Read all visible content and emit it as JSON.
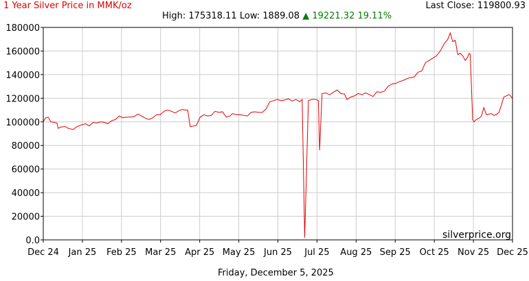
{
  "header": {
    "title": "1 Year Silver Price in MMK/oz",
    "last_close_label": "Last Close:",
    "last_close_value": "119800.93",
    "high_label": "High:",
    "high_value": "175318.11",
    "low_label": "Low:",
    "low_value": "1889.08",
    "change_arrow": "▲",
    "change_value": "19221.32",
    "change_pct": "19.11%"
  },
  "footer": {
    "date": "Friday, December 5, 2025",
    "watermark": "silverprice.org"
  },
  "colors": {
    "title": "#e00000",
    "line": "#e00000",
    "change": "#008000",
    "grid": "#cccccc",
    "axis": "#000000"
  },
  "chart_data": {
    "type": "line",
    "title": "1 Year Silver Price in MMK/oz",
    "xlabel": "",
    "ylabel": "",
    "ylim": [
      0,
      180000
    ],
    "yticks": [
      0,
      20000,
      40000,
      60000,
      80000,
      100000,
      120000,
      140000,
      160000,
      180000
    ],
    "ytick_labels": [
      "0.0",
      "20000",
      "40000",
      "60000",
      "80000",
      "100000",
      "120000",
      "140000",
      "160000",
      "180000"
    ],
    "xtick_labels": [
      "Dec 24",
      "Jan 25",
      "Feb 25",
      "Mar 25",
      "Apr 25",
      "May 25",
      "Jun 25",
      "Jul 25",
      "Aug 25",
      "Sep 25",
      "Oct 25",
      "Nov 25",
      "Dec 25"
    ],
    "grid": true,
    "series": [
      {
        "values": [
          [
            0,
            100000
          ],
          [
            2,
            103500
          ],
          [
            4,
            104000
          ],
          [
            6,
            100000
          ],
          [
            9,
            99500
          ],
          [
            11,
            99000
          ],
          [
            12,
            94500
          ],
          [
            14,
            95500
          ],
          [
            16,
            96000
          ],
          [
            18,
            96000
          ],
          [
            20,
            94500
          ],
          [
            24,
            93500
          ],
          [
            27,
            96000
          ],
          [
            31,
            97500
          ],
          [
            34,
            98500
          ],
          [
            37,
            96500
          ],
          [
            40,
            99500
          ],
          [
            43,
            99000
          ],
          [
            46,
            100000
          ],
          [
            49,
            99500
          ],
          [
            52,
            98500
          ],
          [
            55,
            101000
          ],
          [
            58,
            102000
          ],
          [
            61,
            105000
          ],
          [
            64,
            103500
          ],
          [
            67,
            104000
          ],
          [
            70,
            104000
          ],
          [
            73,
            104500
          ],
          [
            76,
            106500
          ],
          [
            79,
            105000
          ],
          [
            82,
            103000
          ],
          [
            85,
            102000
          ],
          [
            88,
            103500
          ],
          [
            91,
            106000
          ],
          [
            94,
            106000
          ],
          [
            97,
            109000
          ],
          [
            100,
            110000
          ],
          [
            103,
            109000
          ],
          [
            106,
            107500
          ],
          [
            109,
            109500
          ],
          [
            112,
            110500
          ],
          [
            114,
            110000
          ],
          [
            116,
            110000
          ],
          [
            118,
            96000
          ],
          [
            121,
            96500
          ],
          [
            123,
            97000
          ],
          [
            126,
            104000
          ],
          [
            129,
            106000
          ],
          [
            132,
            105000
          ],
          [
            135,
            105500
          ],
          [
            138,
            109000
          ],
          [
            141,
            108000
          ],
          [
            144,
            108500
          ],
          [
            147,
            104000
          ],
          [
            150,
            105000
          ],
          [
            152,
            107000
          ],
          [
            155,
            106000
          ],
          [
            158,
            106000
          ],
          [
            161,
            105500
          ],
          [
            164,
            105000
          ],
          [
            167,
            108000
          ],
          [
            170,
            108500
          ],
          [
            173,
            108000
          ],
          [
            176,
            108000
          ],
          [
            179,
            111000
          ],
          [
            182,
            117000
          ],
          [
            185,
            118000
          ],
          [
            188,
            119000
          ],
          [
            191,
            118000
          ],
          [
            194,
            118500
          ],
          [
            197,
            119500
          ],
          [
            200,
            117500
          ],
          [
            203,
            119000
          ],
          [
            206,
            117000
          ],
          [
            208,
            119000
          ],
          [
            210,
            1889.08
          ],
          [
            213,
            118000
          ],
          [
            216,
            119000
          ],
          [
            219,
            119000
          ],
          [
            221,
            118000
          ],
          [
            222,
            76000
          ],
          [
            224,
            124000
          ],
          [
            227,
            124500
          ],
          [
            230,
            123000
          ],
          [
            233,
            125000
          ],
          [
            236,
            127000
          ],
          [
            239,
            124000
          ],
          [
            242,
            123500
          ],
          [
            244,
            119000
          ],
          [
            247,
            121000
          ],
          [
            250,
            122000
          ],
          [
            253,
            124000
          ],
          [
            256,
            123000
          ],
          [
            259,
            124500
          ],
          [
            262,
            123000
          ],
          [
            265,
            121500
          ],
          [
            268,
            125500
          ],
          [
            271,
            125000
          ],
          [
            274,
            126000
          ],
          [
            277,
            130000
          ],
          [
            280,
            132000
          ],
          [
            283,
            132500
          ],
          [
            286,
            134000
          ],
          [
            289,
            135000
          ],
          [
            292,
            136500
          ],
          [
            295,
            137500
          ],
          [
            298,
            138000
          ],
          [
            301,
            142000
          ],
          [
            304,
            143000
          ],
          [
            307,
            150000
          ],
          [
            310,
            152000
          ],
          [
            313,
            154000
          ],
          [
            316,
            156000
          ],
          [
            319,
            160000
          ],
          [
            322,
            166000
          ],
          [
            325,
            170000
          ],
          [
            327,
            175318.11
          ],
          [
            329,
            168000
          ],
          [
            331,
            169000
          ],
          [
            333,
            157000
          ],
          [
            335,
            158000
          ],
          [
            337,
            156000
          ],
          [
            339,
            152000
          ],
          [
            341,
            155000
          ],
          [
            342,
            158000
          ],
          [
            343,
            157500
          ],
          [
            344,
            130000
          ],
          [
            345,
            102000
          ],
          [
            346,
            100000
          ],
          [
            348,
            102000
          ],
          [
            350,
            103000
          ],
          [
            352,
            105000
          ],
          [
            354,
            112000
          ],
          [
            356,
            106000
          ],
          [
            358,
            106500
          ],
          [
            360,
            107000
          ],
          [
            362,
            105500
          ],
          [
            364,
            106000
          ],
          [
            366,
            108000
          ],
          [
            368,
            114000
          ],
          [
            370,
            121000
          ],
          [
            372,
            122000
          ],
          [
            374,
            123000
          ],
          [
            375,
            122500
          ],
          [
            376,
            121000
          ],
          [
            377,
            119800.93
          ]
        ]
      }
    ]
  }
}
